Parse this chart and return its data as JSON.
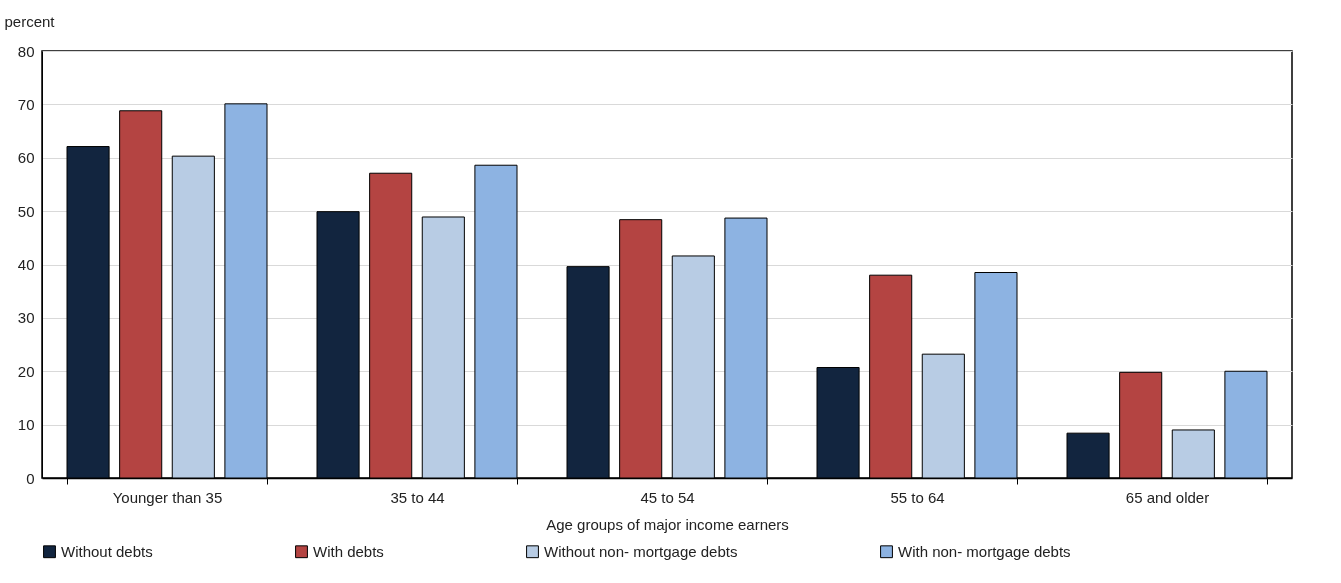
{
  "chart_data": {
    "type": "bar",
    "ylabel": "percent",
    "xlabel": "Age groups of major income earners",
    "categories": [
      "Younger than 35",
      "35 to 44",
      "45 to 54",
      "55 to 64",
      "65 and older"
    ],
    "series": [
      {
        "name": "Without debts",
        "color": "#12253f",
        "values": [
          62.1,
          49.9,
          39.6,
          20.7,
          8.4
        ]
      },
      {
        "name": "With debts",
        "color": "#b44442",
        "values": [
          68.8,
          57.1,
          48.4,
          38.0,
          19.8
        ]
      },
      {
        "name": "Without non- mortgage debts",
        "color": "#b8cce4",
        "values": [
          60.3,
          48.9,
          41.6,
          23.2,
          9.0
        ]
      },
      {
        "name": "With non- mortgage debts",
        "color": "#8db3e2",
        "values": [
          70.1,
          58.6,
          48.7,
          38.5,
          20.0
        ]
      }
    ],
    "ylim": [
      0,
      80
    ],
    "yticks": [
      0,
      10,
      20,
      30,
      40,
      50,
      60,
      70,
      80
    ],
    "grid": "y",
    "legend": "bottom"
  }
}
